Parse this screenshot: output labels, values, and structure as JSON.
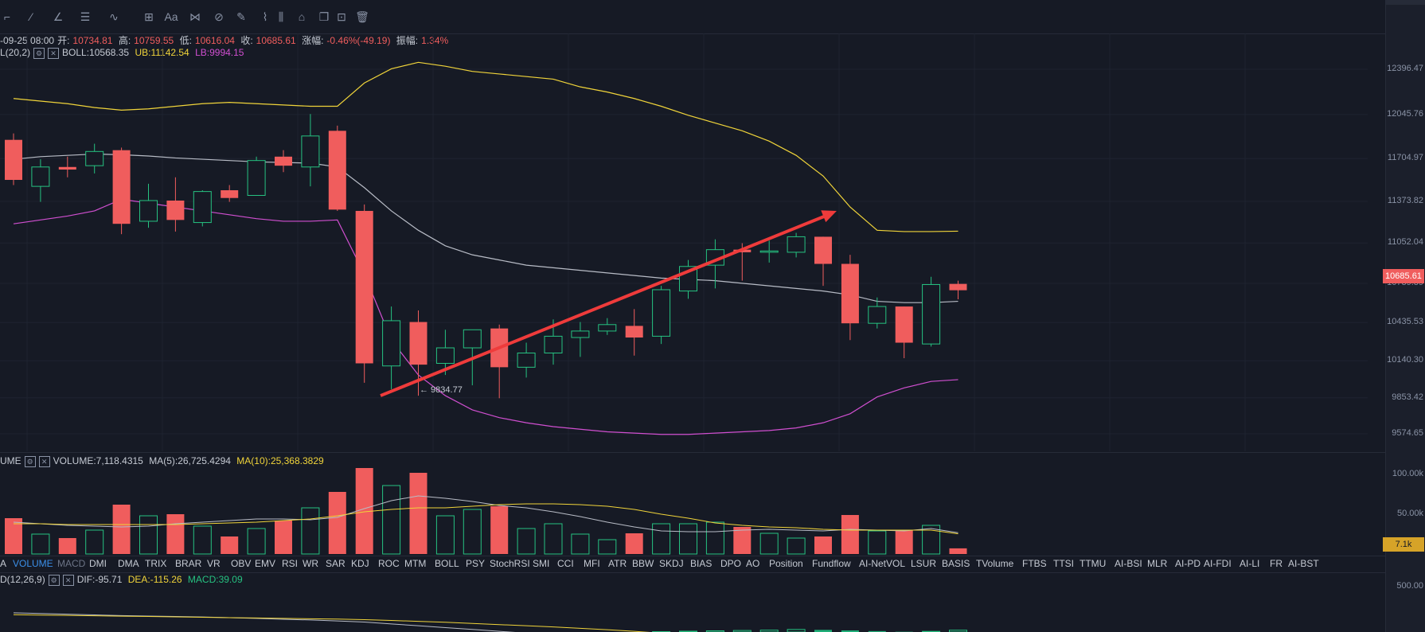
{
  "toolbar": {
    "icons": [
      "cursor-icon",
      "trend-line-icon",
      "angle-line-icon",
      "parallel-channel-icon",
      "wave-icon",
      "measure-icon",
      "text-icon",
      "fib-icon",
      "pattern-icon",
      "ruler-icon",
      "brush-icon",
      "gantt-icon",
      "lock-icon",
      "copy-icon",
      "screenshot-icon",
      "trash-icon"
    ],
    "text_label": "Aa"
  },
  "header": {
    "date": "-09-25 08:00",
    "open_label": "开:",
    "open": "10734.81",
    "high_label": "高:",
    "high": "10759.55",
    "low_label": "低:",
    "low": "10616.04",
    "close_label": "收:",
    "close": "10685.61",
    "change_label": "涨幅:",
    "change": "-0.46%(-49.19)",
    "amp_label": "振幅:",
    "amp": "1.34%"
  },
  "boll_line": {
    "name": "L(20,2)",
    "boll": "BOLL:10568.35",
    "ub": "UB:11142.54",
    "lb": "LB:9994.15"
  },
  "volume_line": {
    "name": "UME",
    "volume": "VOLUME:7,118.4315",
    "ma5": "MA(5):26,725.4294",
    "ma10": "MA(10):25,368.3829"
  },
  "macd_line": {
    "name": "D(12,26,9)",
    "dif": "DIF:-95.71",
    "dea": "DEA:-115.26",
    "macd": "MACD:39.09"
  },
  "price_axis": [
    "12396.47",
    "12045.76",
    "11704.97",
    "11373.82",
    "11052.04",
    "10739.39",
    "10435.53",
    "10140.30",
    "9853.42",
    "9574.65"
  ],
  "current_price": "10685.61",
  "volume_axis": [
    "100.00k",
    "50.00k"
  ],
  "current_volume": "7.1k",
  "macd_axis": [
    "500.00"
  ],
  "min_annotation": "← 9834.77",
  "indicator_tabs": [
    "A",
    "VOLUME",
    "MACD",
    "DMI",
    "DMA",
    "TRIX",
    "BRAR",
    "VR",
    "OBV",
    "EMV",
    "RSI",
    "WR",
    "SAR",
    "KDJ",
    "ROC",
    "MTM",
    "BOLL",
    "PSY",
    "StochRSI",
    "SMI",
    "CCI",
    "MFI",
    "ATR",
    "BBW",
    "SKDJ",
    "BIAS",
    "DPO",
    "AO",
    "Position",
    "Fundflow",
    "AI-NetVOL",
    "LSUR",
    "BASIS",
    "TVolume",
    "FTBS",
    "TTSI",
    "TTMU",
    "AI-BSI",
    "MLR",
    "AI-PD",
    "AI-FDI",
    "AI-LI",
    "FR",
    "AI-BST"
  ],
  "colors": {
    "up": "#26c281",
    "down": "#f05d5d",
    "boll": "#b8bcc6",
    "ub": "#f0d43a",
    "lb": "#d04fd0",
    "bg": "#161a25"
  },
  "chart_data": [
    {
      "type": "candlestick",
      "title": "",
      "ylim": [
        9500,
        12550
      ],
      "candles": [
        {
          "o": 11850,
          "h": 11900,
          "l": 11500,
          "c": 11540
        },
        {
          "o": 11490,
          "h": 11700,
          "l": 11370,
          "c": 11640
        },
        {
          "o": 11640,
          "h": 11720,
          "l": 11560,
          "c": 11620
        },
        {
          "o": 11650,
          "h": 11820,
          "l": 11590,
          "c": 11760
        },
        {
          "o": 11770,
          "h": 11790,
          "l": 11120,
          "c": 11200
        },
        {
          "o": 11220,
          "h": 11510,
          "l": 11170,
          "c": 11380
        },
        {
          "o": 11380,
          "h": 11560,
          "l": 11140,
          "c": 11230
        },
        {
          "o": 11210,
          "h": 11460,
          "l": 11180,
          "c": 11450
        },
        {
          "o": 11460,
          "h": 11500,
          "l": 11370,
          "c": 11400
        },
        {
          "o": 11420,
          "h": 11720,
          "l": 11420,
          "c": 11690
        },
        {
          "o": 11720,
          "h": 11770,
          "l": 11600,
          "c": 11650
        },
        {
          "o": 11640,
          "h": 12050,
          "l": 11490,
          "c": 11880
        },
        {
          "o": 11920,
          "h": 11960,
          "l": 11300,
          "c": 11310
        },
        {
          "o": 11300,
          "h": 11350,
          "l": 9970,
          "c": 10120
        },
        {
          "o": 10100,
          "h": 10560,
          "l": 9920,
          "c": 10450
        },
        {
          "o": 10440,
          "h": 10530,
          "l": 9870,
          "c": 10110
        },
        {
          "o": 10120,
          "h": 10380,
          "l": 10030,
          "c": 10240
        },
        {
          "o": 10240,
          "h": 10370,
          "l": 9950,
          "c": 10380
        },
        {
          "o": 10390,
          "h": 10420,
          "l": 9850,
          "c": 10090
        },
        {
          "o": 10090,
          "h": 10280,
          "l": 10010,
          "c": 10200
        },
        {
          "o": 10200,
          "h": 10460,
          "l": 10110,
          "c": 10330
        },
        {
          "o": 10320,
          "h": 10440,
          "l": 10170,
          "c": 10370
        },
        {
          "o": 10370,
          "h": 10470,
          "l": 10340,
          "c": 10420
        },
        {
          "o": 10410,
          "h": 10540,
          "l": 10180,
          "c": 10320
        },
        {
          "o": 10330,
          "h": 10720,
          "l": 10270,
          "c": 10690
        },
        {
          "o": 10680,
          "h": 10920,
          "l": 10620,
          "c": 10870
        },
        {
          "o": 10880,
          "h": 11080,
          "l": 10700,
          "c": 11000
        },
        {
          "o": 11000,
          "h": 11050,
          "l": 10760,
          "c": 10980
        },
        {
          "o": 10980,
          "h": 11070,
          "l": 10900,
          "c": 10990
        },
        {
          "o": 10980,
          "h": 11130,
          "l": 10940,
          "c": 11100
        },
        {
          "o": 11100,
          "h": 11100,
          "l": 10720,
          "c": 10890
        },
        {
          "o": 10890,
          "h": 10960,
          "l": 10300,
          "c": 10430
        },
        {
          "o": 10430,
          "h": 10630,
          "l": 10390,
          "c": 10560
        },
        {
          "o": 10560,
          "h": 10560,
          "l": 10160,
          "c": 10280
        },
        {
          "o": 10270,
          "h": 10790,
          "l": 10250,
          "c": 10730
        },
        {
          "o": 10735,
          "h": 10760,
          "l": 10616,
          "c": 10686
        }
      ],
      "boll_mid": [
        11700,
        11720,
        11730,
        11740,
        11735,
        11725,
        11710,
        11700,
        11690,
        11680,
        11675,
        11670,
        11640,
        11480,
        11300,
        11150,
        11030,
        10960,
        10920,
        10880,
        10860,
        10840,
        10820,
        10800,
        10780,
        10770,
        10760,
        10740,
        10720,
        10700,
        10680,
        10650,
        10600,
        10590,
        10590,
        10600
      ],
      "boll_upper": [
        12170,
        12150,
        12130,
        12100,
        12080,
        12090,
        12110,
        12130,
        12140,
        12130,
        12120,
        12110,
        12110,
        12290,
        12400,
        12450,
        12420,
        12380,
        12360,
        12340,
        12320,
        12260,
        12220,
        12170,
        12110,
        12040,
        11980,
        11920,
        11840,
        11730,
        11570,
        11330,
        11150,
        11140,
        11140,
        11143
      ],
      "boll_lower": [
        11200,
        11230,
        11260,
        11300,
        11390,
        11360,
        11330,
        11300,
        11270,
        11240,
        11220,
        11220,
        11230,
        10810,
        10300,
        10030,
        9870,
        9760,
        9700,
        9660,
        9630,
        9610,
        9590,
        9580,
        9570,
        9570,
        9580,
        9590,
        9600,
        9620,
        9660,
        9730,
        9860,
        9930,
        9980,
        9994
      ],
      "trend_arrow": {
        "from": [
          13.6,
          9870
        ],
        "to": [
          30.5,
          11300
        ]
      },
      "annotation": {
        "index": 15,
        "price": 9834.77
      }
    },
    {
      "type": "bar",
      "ylim": [
        0,
        105000
      ],
      "volume": [
        45000,
        25000,
        20000,
        30000,
        62000,
        48000,
        50000,
        35000,
        22000,
        32000,
        42000,
        58000,
        78000,
        108000,
        86000,
        102000,
        48000,
        56000,
        60000,
        32000,
        38000,
        25000,
        18000,
        26000,
        38000,
        38000,
        40000,
        34000,
        26000,
        20000,
        22000,
        49000,
        29000,
        30000,
        36000,
        7100
      ],
      "ma5": [
        40000,
        38000,
        36000,
        35000,
        34000,
        35000,
        38000,
        40000,
        42000,
        44000,
        44000,
        43000,
        46000,
        57000,
        67000,
        73000,
        70000,
        66000,
        61000,
        58000,
        53000,
        47000,
        40000,
        34000,
        29000,
        28000,
        28000,
        30000,
        31000,
        30000,
        29000,
        31000,
        30000,
        29000,
        32000,
        26725
      ],
      "ma10": [
        38000,
        38000,
        37000,
        37000,
        37000,
        37000,
        37000,
        38000,
        39000,
        40000,
        42000,
        44000,
        48000,
        53000,
        56000,
        58000,
        58000,
        60000,
        62000,
        63000,
        63000,
        62000,
        60000,
        56000,
        50000,
        45000,
        39000,
        36000,
        34000,
        33000,
        31000,
        30000,
        30000,
        30000,
        30000,
        25368
      ]
    },
    {
      "type": "bar",
      "ylim": [
        -600,
        600
      ],
      "dif": [
        760,
        745,
        730,
        715,
        700,
        690,
        680,
        670,
        655,
        640,
        620,
        605,
        585,
        560,
        520,
        480,
        440,
        400,
        360,
        320,
        280,
        240,
        200,
        160,
        120,
        90,
        60,
        30,
        0,
        -20,
        -40,
        -60,
        -75,
        -85,
        -92,
        -96
      ],
      "dea": [
        720,
        712,
        704,
        696,
        688,
        680,
        672,
        664,
        656,
        648,
        640,
        632,
        624,
        612,
        595,
        575,
        555,
        530,
        505,
        480,
        455,
        425,
        395,
        360,
        320,
        280,
        240,
        200,
        160,
        120,
        80,
        40,
        0,
        -40,
        -80,
        -115
      ],
      "macd": [
        0,
        0,
        0,
        0,
        0,
        0,
        0,
        0,
        0,
        0,
        0,
        0,
        0,
        0,
        0,
        0,
        0,
        0,
        0,
        0,
        0,
        0,
        0,
        0,
        8,
        18,
        26,
        33,
        40,
        55,
        46,
        35,
        20,
        6,
        14,
        39
      ]
    }
  ]
}
